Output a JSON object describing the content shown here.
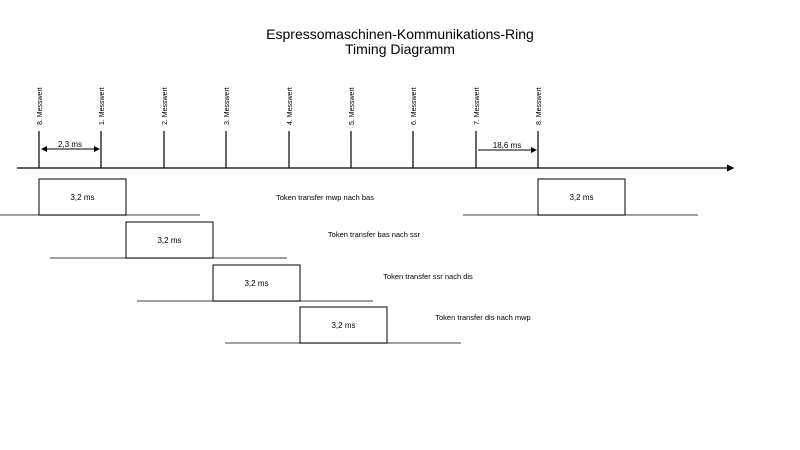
{
  "title": {
    "line1": "Espressomaschinen-Kommunikations-Ring",
    "line2": "Timing Diagramm"
  },
  "markers": [
    "8. Messwert",
    "1. Messwert",
    "2. Messwert",
    "3. Messwert",
    "4. Messwert",
    "5. Messwert",
    "6. Messwert",
    "7. Messwert",
    "8. Messwert"
  ],
  "intervals": {
    "measurement": "2,3 ms",
    "cycle": "18,6 ms"
  },
  "transfers": [
    {
      "box_label": "3,2 ms",
      "label": "Token transfer mwp nach bas",
      "repeat_box_label": "3,2 ms"
    },
    {
      "box_label": "3,2 ms",
      "label": "Token transfer bas nach ssr"
    },
    {
      "box_label": "3,2 ms",
      "label": "Token transfer ssr nach dis"
    },
    {
      "box_label": "3,2 ms",
      "label": "Token transfer dis nach mwp"
    }
  ],
  "colors": {
    "line": "#000000",
    "baseline": "#666666"
  }
}
